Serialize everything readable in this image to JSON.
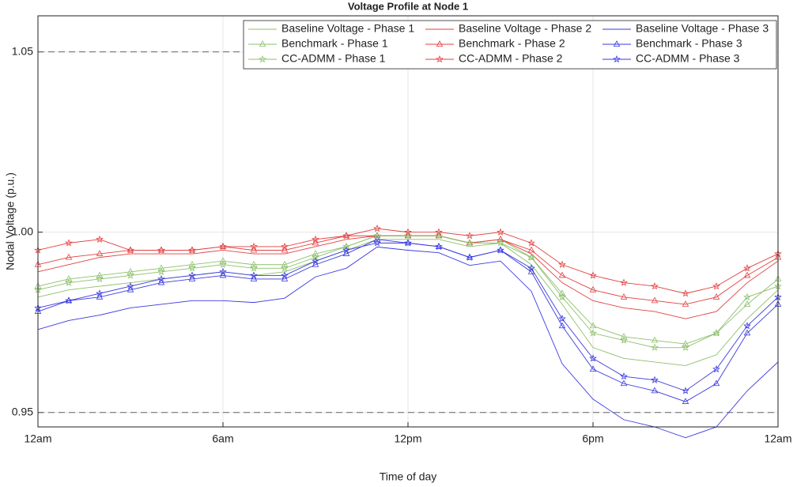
{
  "chart_data": {
    "type": "line",
    "title": "Voltage Profile at Node 1",
    "xlabel": "Time of day",
    "ylabel": "Nodal Voltage (p.u.)",
    "x": [
      0,
      1,
      2,
      3,
      4,
      5,
      6,
      7,
      8,
      9,
      10,
      11,
      12,
      13,
      14,
      15,
      16,
      17,
      18,
      19,
      20,
      21,
      22,
      23,
      24
    ],
    "xlim": [
      0,
      24
    ],
    "xticks": [
      {
        "value": 0,
        "label": "12am"
      },
      {
        "value": 6,
        "label": "6am"
      },
      {
        "value": 12,
        "label": "12pm"
      },
      {
        "value": 18,
        "label": "6pm"
      },
      {
        "value": 24,
        "label": "12am"
      }
    ],
    "ylim": [
      0.946,
      1.06
    ],
    "yticks": [
      0.95,
      {
        "value": 1,
        "label": "1.00"
      },
      1.05
    ],
    "limits": [
      0.95,
      1.05
    ],
    "grid": true,
    "legend": "top-right",
    "series": [
      {
        "name": "Baseline Voltage - Phase 1",
        "color": "#8cc06a",
        "marker": "none",
        "values": [
          0.982,
          0.984,
          0.985,
          0.986,
          0.987,
          0.988,
          0.989,
          0.988,
          0.989,
          0.992,
          0.995,
          0.998,
          0.998,
          0.998,
          0.996,
          0.997,
          0.991,
          0.98,
          0.968,
          0.965,
          0.964,
          0.963,
          0.966,
          0.976,
          0.984
        ]
      },
      {
        "name": "Baseline Voltage - Phase 2",
        "color": "#e34040",
        "marker": "none",
        "values": [
          0.989,
          0.991,
          0.993,
          0.994,
          0.994,
          0.994,
          0.995,
          0.994,
          0.994,
          0.996,
          0.998,
          0.999,
          0.999,
          0.999,
          0.997,
          0.998,
          0.994,
          0.986,
          0.981,
          0.979,
          0.978,
          0.976,
          0.978,
          0.986,
          0.992
        ]
      },
      {
        "name": "Baseline Voltage - Phase 3",
        "color": "#3a3ae0",
        "marker": "none",
        "values": [
          0.973,
          0.9755,
          0.977,
          0.979,
          0.98,
          0.981,
          0.981,
          0.9805,
          0.9817,
          0.9876,
          0.99,
          0.9959,
          0.995,
          0.9943,
          0.9908,
          0.992,
          0.9836,
          0.9635,
          0.9537,
          0.948,
          0.946,
          0.943,
          0.946,
          0.956,
          0.964
        ]
      },
      {
        "name": "Benchmark - Phase 1",
        "color": "#8cc06a",
        "marker": "triangle",
        "values": [
          0.985,
          0.987,
          0.988,
          0.989,
          0.99,
          0.991,
          0.992,
          0.991,
          0.991,
          0.994,
          0.996,
          0.999,
          0.999,
          0.999,
          0.997,
          0.998,
          0.993,
          0.983,
          0.974,
          0.971,
          0.97,
          0.969,
          0.972,
          0.98,
          0.987
        ]
      },
      {
        "name": "Benchmark - Phase 2",
        "color": "#e34040",
        "marker": "triangle",
        "values": [
          0.991,
          0.993,
          0.994,
          0.995,
          0.995,
          0.995,
          0.996,
          0.995,
          0.995,
          0.997,
          0.999,
          0.999,
          0.999,
          0.999,
          0.997,
          0.998,
          0.995,
          0.988,
          0.984,
          0.982,
          0.981,
          0.98,
          0.982,
          0.988,
          0.993
        ]
      },
      {
        "name": "Benchmark - Phase 3",
        "color": "#3a3ae0",
        "marker": "triangle",
        "values": [
          0.978,
          0.981,
          0.982,
          0.984,
          0.986,
          0.987,
          0.988,
          0.987,
          0.987,
          0.991,
          0.994,
          0.998,
          0.997,
          0.996,
          0.993,
          0.995,
          0.989,
          0.974,
          0.962,
          0.958,
          0.956,
          0.953,
          0.958,
          0.972,
          0.98
        ]
      },
      {
        "name": "CC-ADMM - Phase 1",
        "color": "#8cc06a",
        "marker": "star",
        "values": [
          0.984,
          0.986,
          0.987,
          0.988,
          0.989,
          0.99,
          0.991,
          0.99,
          0.99,
          0.993,
          0.996,
          0.999,
          0.999,
          0.999,
          0.997,
          0.997,
          0.993,
          0.982,
          0.972,
          0.97,
          0.968,
          0.968,
          0.972,
          0.982,
          0.985
        ]
      },
      {
        "name": "CC-ADMM - Phase 2",
        "color": "#e34040",
        "marker": "star",
        "values": [
          0.995,
          0.997,
          0.998,
          0.995,
          0.995,
          0.995,
          0.996,
          0.996,
          0.996,
          0.998,
          0.999,
          1.001,
          1.0,
          1.0,
          0.999,
          1.0,
          0.997,
          0.991,
          0.988,
          0.986,
          0.985,
          0.983,
          0.985,
          0.99,
          0.994
        ]
      },
      {
        "name": "CC-ADMM - Phase 3",
        "color": "#3a3ae0",
        "marker": "star",
        "values": [
          0.979,
          0.981,
          0.983,
          0.985,
          0.987,
          0.988,
          0.989,
          0.988,
          0.988,
          0.992,
          0.995,
          0.997,
          0.997,
          0.996,
          0.993,
          0.995,
          0.99,
          0.976,
          0.965,
          0.96,
          0.959,
          0.956,
          0.962,
          0.974,
          0.982
        ]
      }
    ]
  }
}
